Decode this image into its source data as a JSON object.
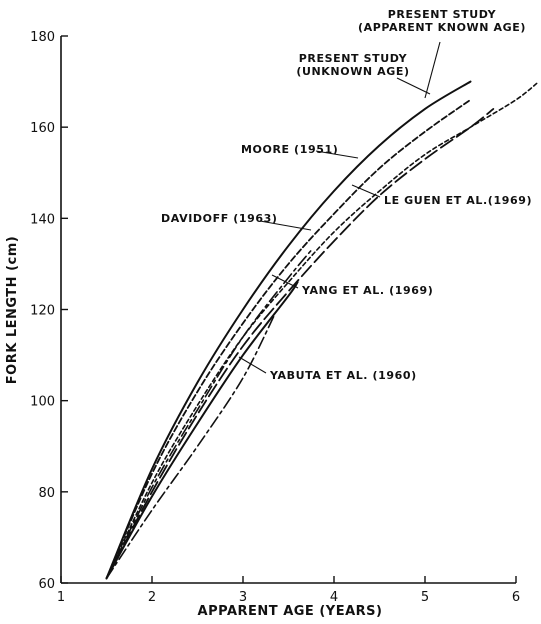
{
  "chart_data": {
    "type": "line",
    "title": "",
    "xlabel": "APPARENT AGE (YEARS)",
    "ylabel": "FORK LENGTH (cm)",
    "xlim": [
      1,
      6
    ],
    "ylim": [
      60,
      180
    ],
    "xticks": [
      1,
      2,
      3,
      4,
      5,
      6
    ],
    "yticks": [
      60,
      80,
      100,
      120,
      140,
      160,
      180
    ],
    "grid": false,
    "legend": "none (curves labeled directly)",
    "series": [
      {
        "name": "PRESENT STUDY (UNKNOWN AGE)",
        "style": "solid",
        "x": [
          1.5,
          2.0,
          2.5,
          3.0,
          3.5,
          4.0,
          4.5,
          5.0,
          5.5
        ],
        "y": [
          61,
          85,
          104,
          120,
          134,
          146,
          156,
          164,
          170
        ]
      },
      {
        "name": "PRESENT STUDY (APPARENT KNOWN AGE)",
        "style": "dotted",
        "x": [
          1.5,
          2.0,
          2.5,
          3.0,
          3.5,
          4.0,
          4.5,
          5.0,
          5.5,
          6.0,
          6.25
        ],
        "y": [
          61,
          82,
          99,
          114,
          126,
          137,
          146,
          154,
          160,
          166,
          170
        ]
      },
      {
        "name": "MOORE (1951)",
        "style": "short-dash",
        "x": [
          1.5,
          2.0,
          2.5,
          3.0,
          3.5,
          4.0,
          4.5,
          5.0,
          5.5
        ],
        "y": [
          61,
          84,
          102,
          117,
          130,
          141,
          151,
          159,
          166
        ]
      },
      {
        "name": "LE GUEN ET AL. (1969)",
        "style": "long-dash",
        "x": [
          1.5,
          2.0,
          2.5,
          3.0,
          3.5,
          4.0,
          4.5,
          5.0,
          5.5,
          5.75
        ],
        "y": [
          61,
          80,
          97,
          112,
          124,
          135,
          145,
          153,
          160,
          164
        ]
      },
      {
        "name": "DAVIDOFF (1963)",
        "style": "dash-dot",
        "x": [
          1.5,
          2.0,
          2.5,
          3.0,
          3.5,
          3.75
        ],
        "y": [
          61,
          81,
          98,
          114,
          127,
          133
        ]
      },
      {
        "name": "YANG ET AL. (1969)",
        "style": "solid",
        "x": [
          1.5,
          2.0,
          2.5,
          3.0,
          3.5,
          3.6
        ],
        "y": [
          61,
          79,
          95,
          110,
          123,
          126
        ]
      },
      {
        "name": "YABUTA ET AL. (1960)",
        "style": "dash-dot",
        "x": [
          1.5,
          2.0,
          2.5,
          3.0,
          3.35
        ],
        "y": [
          61,
          76,
          90,
          105,
          119
        ]
      }
    ],
    "annotations": [
      {
        "line1": "PRESENT STUDY",
        "line2": "(APPARENT KNOWN AGE)"
      },
      {
        "line1": "PRESENT STUDY",
        "line2": "(UNKNOWN AGE)"
      },
      {
        "line1": "MOORE (1951)"
      },
      {
        "line1": "LE GUEN  ET AL.(1969)"
      },
      {
        "line1": "DAVIDOFF (1963)"
      },
      {
        "line1": "YANG ET AL. (1969)"
      },
      {
        "line1": "YABUTA ET AL. (1960)"
      }
    ]
  }
}
